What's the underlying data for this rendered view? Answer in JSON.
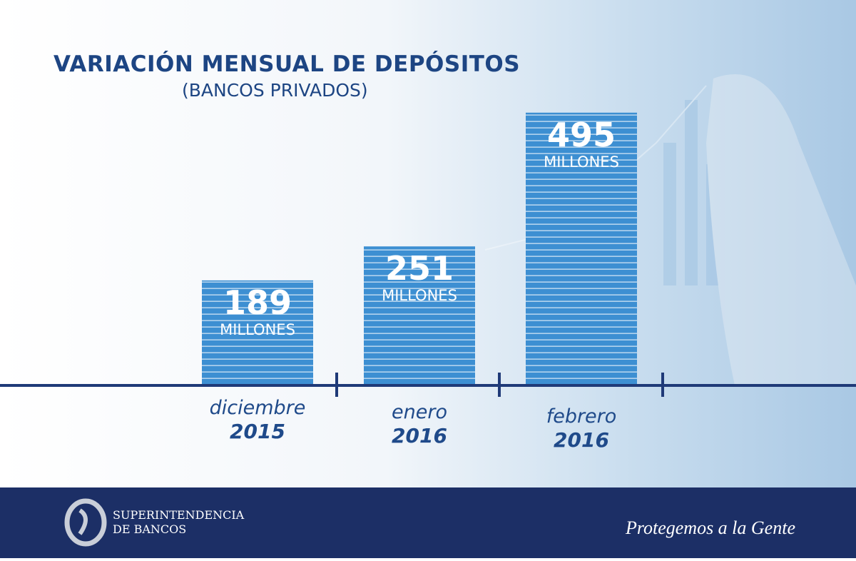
{
  "chart_data": {
    "type": "bar",
    "title": "VARIACIÓN MENSUAL DE DEPÓSITOS",
    "subtitle": "(BANCOS PRIVADOS)",
    "categories": [
      "diciembre",
      "enero",
      "febrero"
    ],
    "category_years": [
      "2015",
      "2016",
      "2016"
    ],
    "values": [
      189,
      251,
      495
    ],
    "unit": "MILLONES",
    "color": "#3d8fd2"
  },
  "footer": {
    "org": [
      "SUPERINTENDENCIA",
      "DE BANCOS"
    ],
    "slogan": "Protegemos a la Gente"
  }
}
